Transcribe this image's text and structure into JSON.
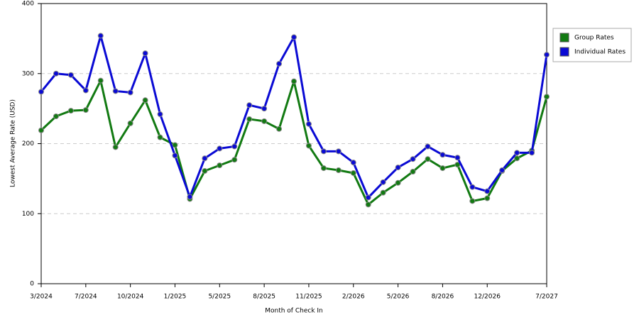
{
  "chart_data": {
    "type": "line",
    "x_label": "Month of Check In",
    "y_label": "Lowest Average Rate (USD)",
    "categories": [
      "3/2024",
      null,
      null,
      "7/2024",
      null,
      null,
      "10/2024",
      null,
      null,
      "1/2025",
      null,
      null,
      "5/2025",
      null,
      null,
      "8/2025",
      null,
      null,
      "11/2025",
      null,
      null,
      "2/2026",
      null,
      null,
      "5/2026",
      null,
      null,
      "8/2026",
      null,
      null,
      "12/2026",
      null,
      null,
      null,
      "7/2027"
    ],
    "series": [
      {
        "name": "Group Rates",
        "color": "#127a12",
        "values": [
          219,
          239,
          247,
          248,
          290,
          195,
          229,
          262,
          209,
          198,
          121,
          161,
          169,
          177,
          235,
          232,
          221,
          289,
          197,
          165,
          162,
          158,
          113,
          130,
          144,
          160,
          178,
          165,
          170,
          118,
          122,
          161,
          179,
          190,
          267
        ]
      },
      {
        "name": "Individual Rates",
        "color": "#0a0ad4",
        "values": [
          274,
          300,
          298,
          276,
          354,
          275,
          273,
          329,
          242,
          183,
          124,
          179,
          193,
          196,
          255,
          250,
          314,
          352,
          228,
          189,
          189,
          173,
          123,
          145,
          166,
          178,
          196,
          184,
          180,
          138,
          132,
          162,
          187,
          187,
          327
        ]
      }
    ],
    "ylim": [
      0,
      400
    ],
    "yticks": [
      0,
      100,
      200,
      300,
      400
    ],
    "grid": true,
    "legend": "right"
  }
}
